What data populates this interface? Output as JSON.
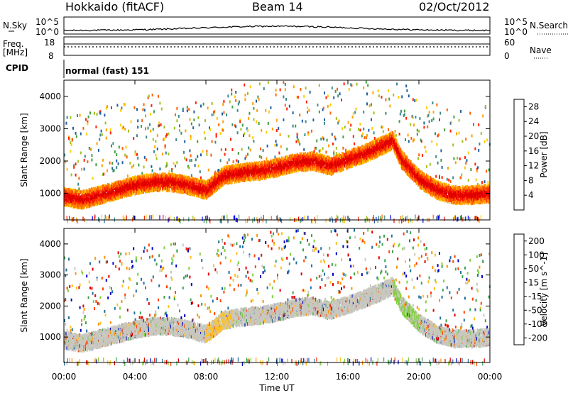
{
  "header": {
    "station": "Hokkaido (fitACF)",
    "beam": "Beam 14",
    "date": "02/Oct/2012"
  },
  "strips": {
    "nsky_label": "N.Sky",
    "nsky_ticks": [
      "10^5",
      "10^0"
    ],
    "nsearch_label": "N.Search",
    "nsearch_ticks": [
      "10^5",
      "10^0"
    ],
    "freq_label": "Freq.",
    "freq_unit": "[MHz]",
    "freq_ticks": [
      "18",
      "8"
    ],
    "nave_label": "Nave",
    "nave_ticks": [
      "60",
      "0"
    ],
    "cpid_label": "CPID",
    "cpid_value": "normal (fast) 151"
  },
  "colors": {
    "power_scale": [
      "#0000ff",
      "#2060a0",
      "#3a8a8a",
      "#40a040",
      "#a0c020",
      "#ffcc00",
      "#ffa000",
      "#ff6000",
      "#ff2000",
      "#e00000"
    ],
    "velocity_scale": [
      "#0000c0",
      "#2070a0",
      "#40a050",
      "#80d040",
      "#c8c8c0",
      "#ffc020",
      "#ff9000",
      "#ff4000",
      "#e00000"
    ]
  },
  "chart_data": [
    {
      "type": "heatmap",
      "panel": "power",
      "ylabel": "Slant Range [km]",
      "xlabel": "Time UT",
      "xlim": [
        "00:00",
        "24:00"
      ],
      "x_ticks": [
        "00:00",
        "04:00",
        "08:00",
        "12:00",
        "16:00",
        "20:00",
        "00:00"
      ],
      "ylim": [
        180,
        4500
      ],
      "y_ticks": [
        1000,
        2000,
        3000,
        4000
      ],
      "colorbar": {
        "label": "Power [dB]",
        "ticks": [
          4,
          8,
          12,
          16,
          20,
          24,
          28
        ],
        "range": [
          0,
          30
        ]
      },
      "main_echo_band_center_km": {
        "hours": [
          0,
          1,
          2,
          3,
          4,
          5,
          6,
          7,
          8,
          9,
          10,
          11,
          12,
          13,
          14,
          15,
          16,
          17,
          18,
          18.5,
          19,
          20,
          21,
          22,
          23,
          24
        ],
        "range": [
          950,
          850,
          1000,
          1150,
          1300,
          1400,
          1400,
          1300,
          1150,
          1600,
          1700,
          1750,
          1850,
          2000,
          2050,
          1900,
          2100,
          2300,
          2550,
          2700,
          2100,
          1500,
          1150,
          1000,
          1000,
          1050
        ]
      }
    },
    {
      "type": "heatmap",
      "panel": "velocity",
      "ylabel": "Slant Range [km]",
      "xlabel": "Time UT",
      "xlim": [
        "00:00",
        "24:00"
      ],
      "x_ticks": [
        "00:00",
        "04:00",
        "08:00",
        "12:00",
        "16:00",
        "20:00",
        "00:00"
      ],
      "ylim": [
        180,
        4500
      ],
      "y_ticks": [
        1000,
        2000,
        3000,
        4000
      ],
      "colorbar": {
        "label": "Velocity [m s^-1]",
        "ticks": [
          200,
          100,
          50,
          15,
          -15,
          -50,
          -100,
          -200
        ]
      }
    }
  ]
}
